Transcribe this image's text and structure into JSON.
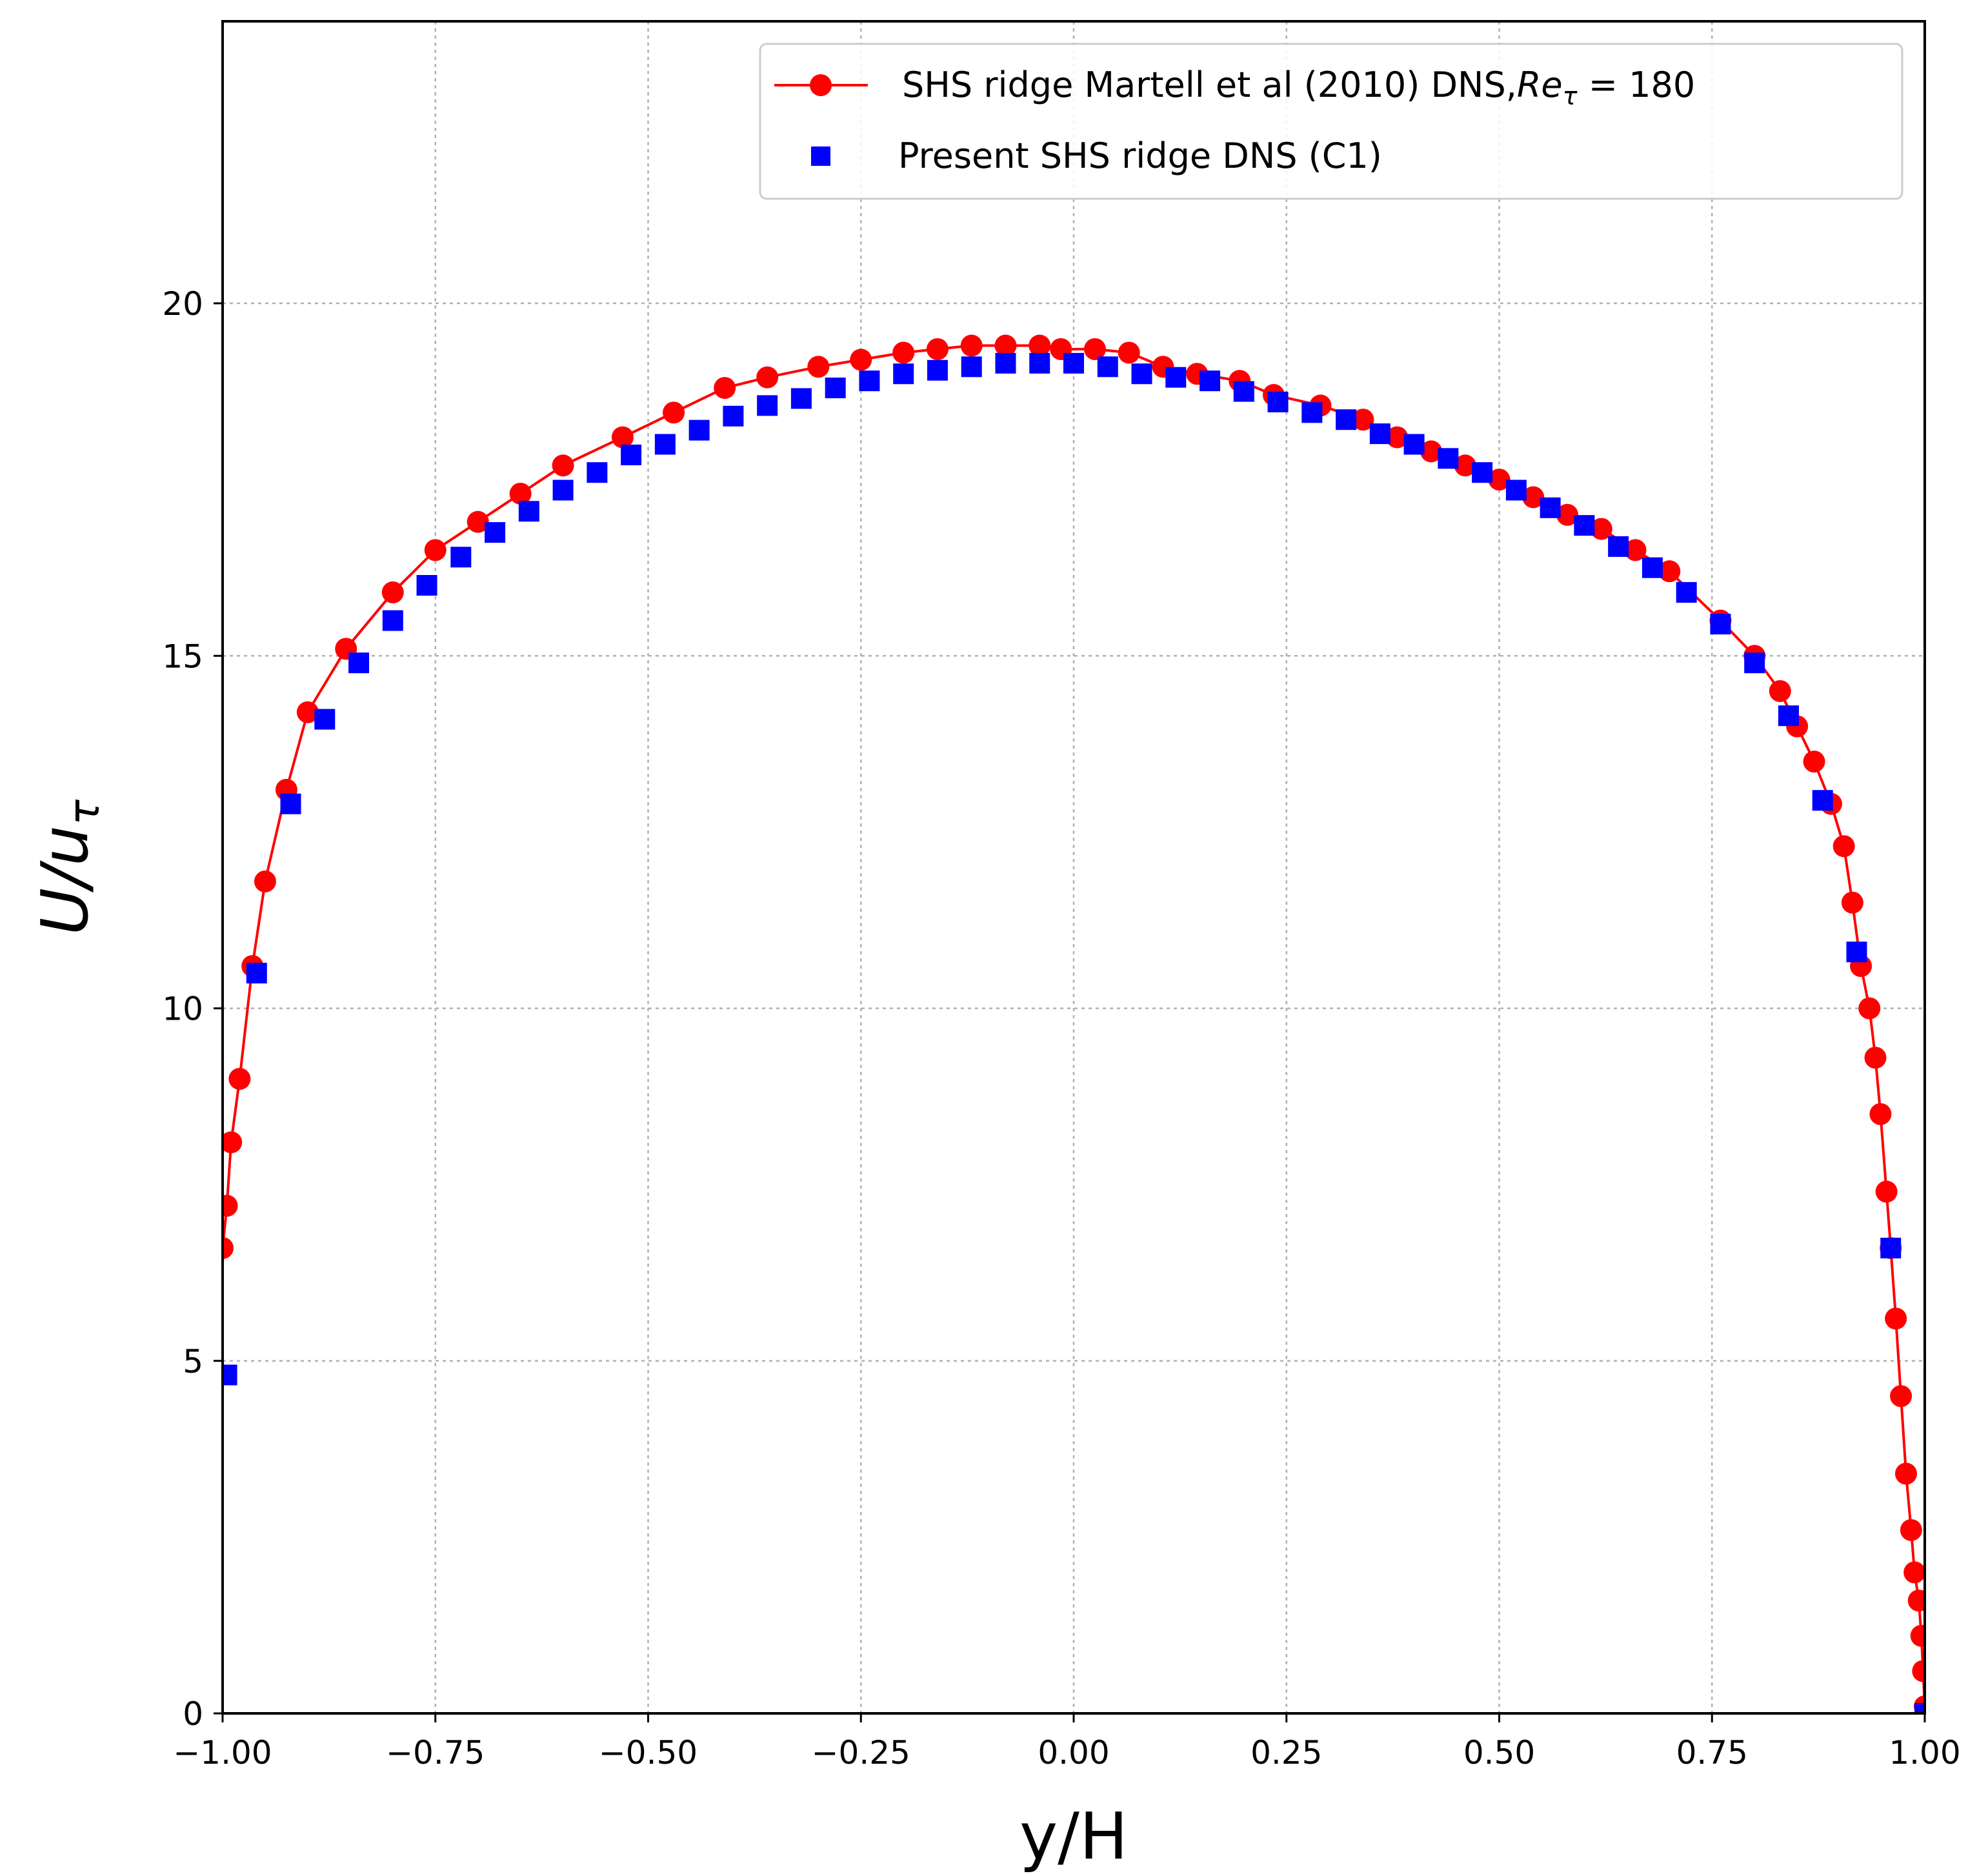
{
  "chart_data": {
    "type": "scatter",
    "title": "",
    "xlabel": "y/H",
    "ylabel_main": "U/u",
    "ylabel_sub": "τ",
    "xlim": [
      -1.0,
      1.0
    ],
    "ylim": [
      0,
      24
    ],
    "grid": true,
    "legend_position": "top-right",
    "x_ticks": [
      -1.0,
      -0.75,
      -0.5,
      -0.25,
      0.0,
      0.25,
      0.5,
      0.75,
      1.0
    ],
    "x_tick_labels": [
      "−1.00",
      "−0.75",
      "−0.50",
      "−0.25",
      "0.00",
      "0.25",
      "0.50",
      "0.75",
      "1.00"
    ],
    "y_ticks": [
      0,
      5,
      10,
      15,
      20
    ],
    "y_tick_labels": [
      "0",
      "5",
      "10",
      "15",
      "20"
    ],
    "series": [
      {
        "name": "SHS ridge Martell et al (2010) DNS,",
        "name_math_base": "Re",
        "name_math_sub": "τ",
        "name_math_rest": " = 180",
        "style": "line-circle",
        "color": "#ff0000",
        "x": [
          -1.0,
          -0.995,
          -0.99,
          -0.98,
          -0.965,
          -0.95,
          -0.925,
          -0.9,
          -0.855,
          -0.8,
          -0.75,
          -0.7,
          -0.65,
          -0.6,
          -0.53,
          -0.47,
          -0.41,
          -0.36,
          -0.3,
          -0.25,
          -0.2,
          -0.16,
          -0.12,
          -0.08,
          -0.04,
          -0.015,
          0.025,
          0.065,
          0.105,
          0.145,
          0.195,
          0.235,
          0.29,
          0.34,
          0.38,
          0.42,
          0.46,
          0.5,
          0.54,
          0.58,
          0.62,
          0.66,
          0.7,
          0.76,
          0.8,
          0.83,
          0.85,
          0.87,
          0.89,
          0.905,
          0.915,
          0.925,
          0.935,
          0.942,
          0.948,
          0.955,
          0.96,
          0.966,
          0.972,
          0.978,
          0.984,
          0.988,
          0.993,
          0.996,
          0.998,
          1.0
        ],
        "y": [
          6.6,
          7.2,
          8.1,
          9.0,
          10.6,
          11.8,
          13.1,
          14.2,
          15.1,
          15.9,
          16.5,
          16.9,
          17.3,
          17.7,
          18.1,
          18.45,
          18.8,
          18.95,
          19.1,
          19.2,
          19.3,
          19.35,
          19.4,
          19.4,
          19.4,
          19.35,
          19.35,
          19.3,
          19.1,
          19.0,
          18.9,
          18.7,
          18.55,
          18.35,
          18.1,
          17.9,
          17.7,
          17.5,
          17.25,
          17.0,
          16.8,
          16.5,
          16.2,
          15.5,
          15.0,
          14.5,
          14.0,
          13.5,
          12.9,
          12.3,
          11.5,
          10.6,
          10.0,
          9.3,
          8.5,
          7.4,
          6.6,
          5.6,
          4.5,
          3.4,
          2.6,
          2.0,
          1.6,
          1.1,
          0.6,
          0.1
        ]
      },
      {
        "name": "Present SHS ridge DNS (C1)",
        "style": "square",
        "color": "#0000ff",
        "x": [
          -0.995,
          -0.96,
          -0.92,
          -0.88,
          -0.84,
          -0.8,
          -0.76,
          -0.72,
          -0.68,
          -0.64,
          -0.6,
          -0.56,
          -0.52,
          -0.48,
          -0.44,
          -0.4,
          -0.36,
          -0.32,
          -0.28,
          -0.24,
          -0.2,
          -0.16,
          -0.12,
          -0.08,
          -0.04,
          0.0,
          0.04,
          0.08,
          0.12,
          0.16,
          0.2,
          0.24,
          0.28,
          0.32,
          0.36,
          0.4,
          0.44,
          0.48,
          0.52,
          0.56,
          0.6,
          0.64,
          0.68,
          0.72,
          0.76,
          0.8,
          0.84,
          0.88,
          0.92,
          0.96,
          1.0
        ],
        "y": [
          4.8,
          10.5,
          12.9,
          14.1,
          14.9,
          15.5,
          16.0,
          16.4,
          16.75,
          17.05,
          17.35,
          17.6,
          17.85,
          18.0,
          18.2,
          18.4,
          18.55,
          18.65,
          18.8,
          18.9,
          19.0,
          19.05,
          19.1,
          19.15,
          19.15,
          19.15,
          19.1,
          19.0,
          18.95,
          18.9,
          18.75,
          18.6,
          18.45,
          18.35,
          18.15,
          18.0,
          17.8,
          17.6,
          17.35,
          17.1,
          16.85,
          16.55,
          16.25,
          15.9,
          15.45,
          14.9,
          14.15,
          12.95,
          10.8,
          6.6,
          0.0
        ]
      }
    ]
  }
}
